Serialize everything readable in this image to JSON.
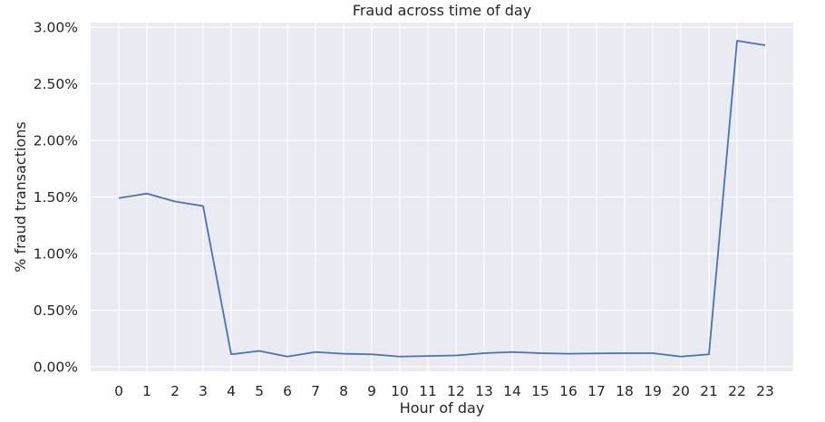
{
  "chart_data": {
    "type": "line",
    "title": "Fraud across time of day",
    "xlabel": "Hour of day",
    "ylabel": "% fraud transactions",
    "x": [
      0,
      1,
      2,
      3,
      4,
      5,
      6,
      7,
      8,
      9,
      10,
      11,
      12,
      13,
      14,
      15,
      16,
      17,
      18,
      19,
      20,
      21,
      22,
      23
    ],
    "x_tick_labels": [
      "0",
      "1",
      "2",
      "3",
      "4",
      "5",
      "6",
      "7",
      "8",
      "9",
      "10",
      "11",
      "12",
      "13",
      "14",
      "15",
      "16",
      "17",
      "18",
      "19",
      "20",
      "21",
      "22",
      "23"
    ],
    "series": [
      {
        "values": [
          1.49,
          1.53,
          1.46,
          1.42,
          0.11,
          0.14,
          0.09,
          0.13,
          0.115,
          0.11,
          0.09,
          0.095,
          0.1,
          0.12,
          0.13,
          0.12,
          0.115,
          0.118,
          0.12,
          0.12,
          0.09,
          0.11,
          2.88,
          2.84
        ],
        "color": "#4c72b0"
      }
    ],
    "ylim": [
      -0.04,
      3.04
    ],
    "y_ticks": [
      0,
      0.5,
      1.0,
      1.5,
      2.0,
      2.5,
      3.0
    ],
    "y_tick_labels": [
      "0.00%",
      "0.50%",
      "1.00%",
      "1.50%",
      "2.00%",
      "2.50%",
      "3.00%"
    ],
    "xlim": [
      -1,
      24
    ],
    "grid": true,
    "background_color": "#eaeaf2",
    "grid_color": "#ffffff"
  }
}
